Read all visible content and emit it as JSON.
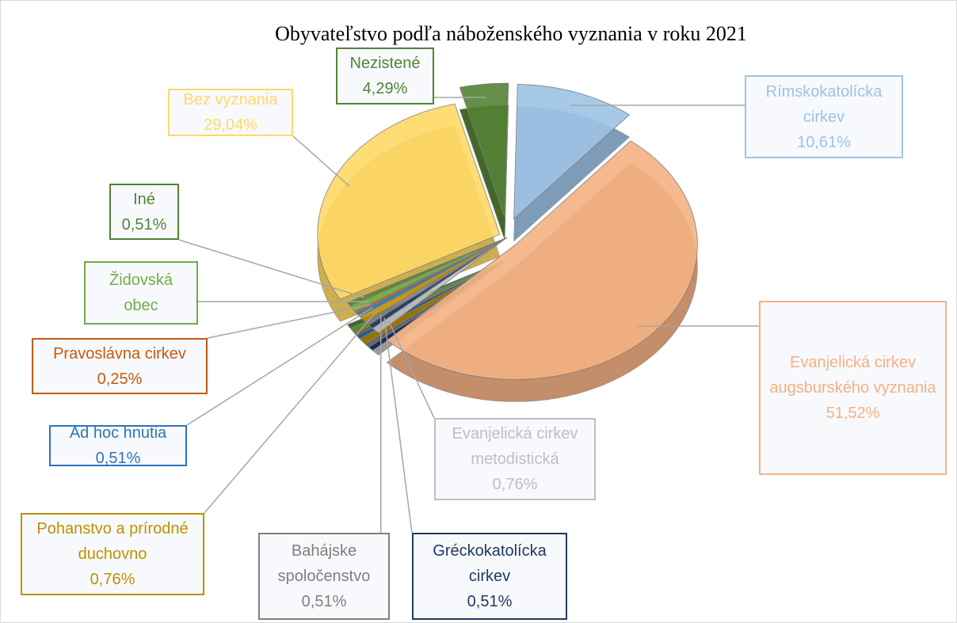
{
  "chart_data": {
    "type": "pie",
    "title": "Obyvateľstvo podľa náboženského vyznania v roku 2021",
    "categories": [
      "Rímskokatolícka cirkev",
      "Evanjelická cirkev augsburského vyznania",
      "Evanjelická cirkev metodistická",
      "Gréckokatolícka cirkev",
      "Bahájske spoločenstvo",
      "Pohanstvo a prírodné duchovno",
      "Ad hoc hnutia",
      "Pravoslávna cirkev",
      "Židovská obec",
      "Iné",
      "Bez vyznania",
      "Nezistené"
    ],
    "values": [
      10.61,
      51.52,
      0.76,
      0.51,
      0.51,
      0.76,
      0.51,
      0.25,
      0.73,
      0.51,
      29.04,
      4.29
    ],
    "value_labels": [
      "10,61%",
      "51,52%",
      "0,76%",
      "0,51%",
      "0,51%",
      "0,76%",
      "0,51%",
      "0,25%",
      null,
      "0,51%",
      "29,04%",
      "4,29%"
    ],
    "colors": [
      "#9dc3e6",
      "#f4b183",
      "#bfbfbf",
      "#203864",
      "#7f7f7f",
      "#bf9000",
      "#2e75b6",
      "#c55a11",
      "#70ad47",
      "#548235",
      "#ffd966",
      "#548235"
    ]
  }
}
